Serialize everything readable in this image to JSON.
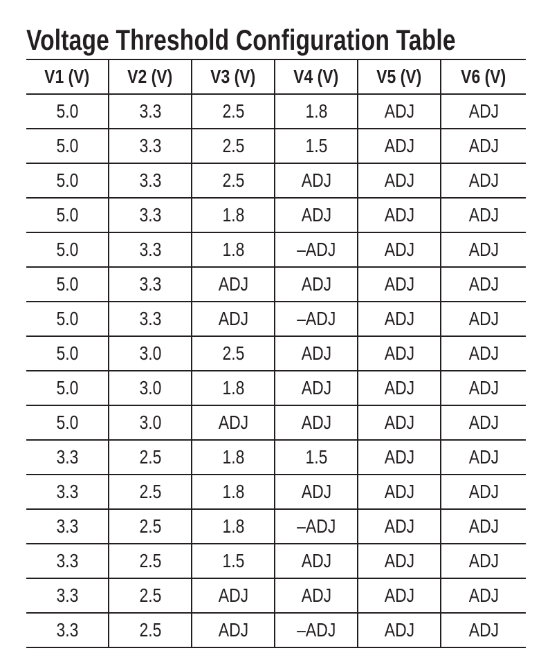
{
  "title": "Voltage Threshold Configuration Table",
  "table": {
    "headers": [
      "V1 (V)",
      "V2 (V)",
      "V3 (V)",
      "V4 (V)",
      "V5 (V)",
      "V6 (V)"
    ],
    "rows": [
      [
        "5.0",
        "3.3",
        "2.5",
        "1.8",
        "ADJ",
        "ADJ"
      ],
      [
        "5.0",
        "3.3",
        "2.5",
        "1.5",
        "ADJ",
        "ADJ"
      ],
      [
        "5.0",
        "3.3",
        "2.5",
        "ADJ",
        "ADJ",
        "ADJ"
      ],
      [
        "5.0",
        "3.3",
        "1.8",
        "ADJ",
        "ADJ",
        "ADJ"
      ],
      [
        "5.0",
        "3.3",
        "1.8",
        "–ADJ",
        "ADJ",
        "ADJ"
      ],
      [
        "5.0",
        "3.3",
        "ADJ",
        "ADJ",
        "ADJ",
        "ADJ"
      ],
      [
        "5.0",
        "3.3",
        "ADJ",
        "–ADJ",
        "ADJ",
        "ADJ"
      ],
      [
        "5.0",
        "3.0",
        "2.5",
        "ADJ",
        "ADJ",
        "ADJ"
      ],
      [
        "5.0",
        "3.0",
        "1.8",
        "ADJ",
        "ADJ",
        "ADJ"
      ],
      [
        "5.0",
        "3.0",
        "ADJ",
        "ADJ",
        "ADJ",
        "ADJ"
      ],
      [
        "3.3",
        "2.5",
        "1.8",
        "1.5",
        "ADJ",
        "ADJ"
      ],
      [
        "3.3",
        "2.5",
        "1.8",
        "ADJ",
        "ADJ",
        "ADJ"
      ],
      [
        "3.3",
        "2.5",
        "1.8",
        "–ADJ",
        "ADJ",
        "ADJ"
      ],
      [
        "3.3",
        "2.5",
        "1.5",
        "ADJ",
        "ADJ",
        "ADJ"
      ],
      [
        "3.3",
        "2.5",
        "ADJ",
        "ADJ",
        "ADJ",
        "ADJ"
      ],
      [
        "3.3",
        "2.5",
        "ADJ",
        "–ADJ",
        "ADJ",
        "ADJ"
      ]
    ]
  }
}
